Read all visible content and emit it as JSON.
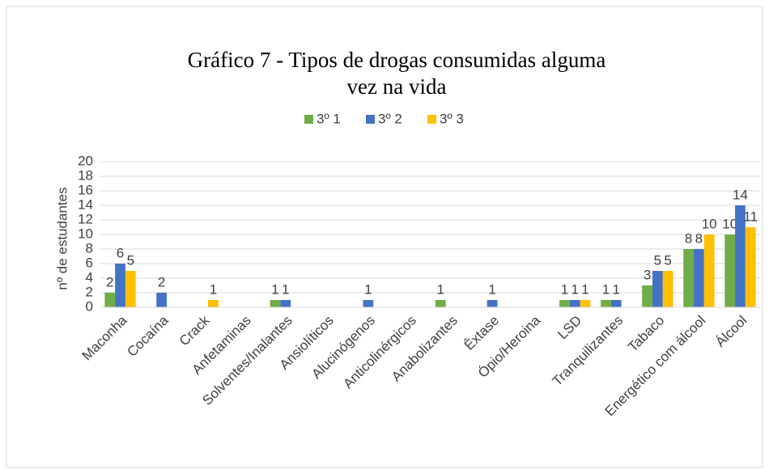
{
  "chart_data": {
    "type": "bar",
    "title": "Gráfico 7 - Tipos de drogas consumidas alguma vez na vida",
    "y_label": "nº de estudantes",
    "categories": [
      "Maconha",
      "Cocaína",
      "Crack",
      "Anfetaminas",
      "Solventes/Inalantes",
      "Ansiolíticos",
      "Alucinógenos",
      "Anticolinérgicos",
      "Anabolizantes",
      "Êxtase",
      "Ópio/Heroina",
      "LSD",
      "Tranquilizantes",
      "Tabaco",
      "Energético com álcool",
      "Álcool"
    ],
    "series": [
      {
        "name": "3º 1",
        "color": "#70ad47",
        "values": [
          2,
          null,
          null,
          null,
          1,
          null,
          null,
          null,
          1,
          null,
          null,
          1,
          1,
          3,
          8,
          10
        ]
      },
      {
        "name": "3º 2",
        "color": "#4472c4",
        "values": [
          6,
          2,
          null,
          null,
          1,
          null,
          1,
          null,
          null,
          1,
          null,
          1,
          1,
          5,
          8,
          14
        ]
      },
      {
        "name": "3º 3",
        "color": "#ffc000",
        "values": [
          5,
          null,
          1,
          null,
          null,
          null,
          null,
          null,
          null,
          null,
          null,
          1,
          null,
          5,
          10,
          11
        ]
      }
    ],
    "ylim": [
      0,
      20
    ],
    "yticks": [
      0,
      2,
      4,
      6,
      8,
      10,
      12,
      14,
      16,
      18,
      20
    ],
    "grid": true,
    "legend": "top"
  }
}
